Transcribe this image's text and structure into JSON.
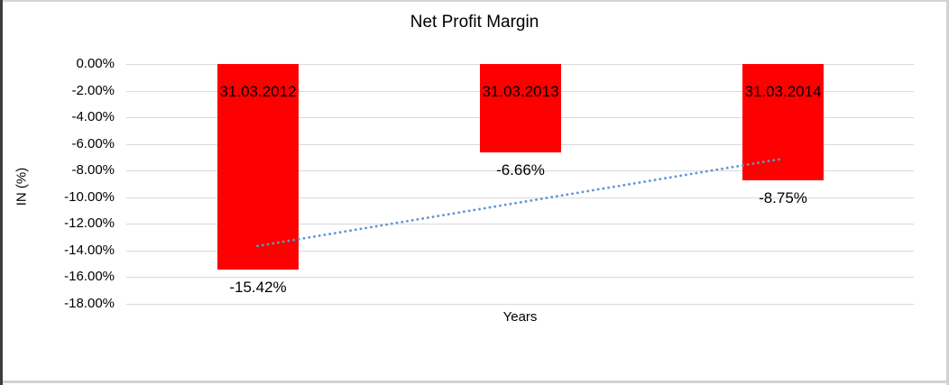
{
  "chart_data": {
    "type": "bar",
    "title": "Net Profit Margin",
    "xlabel": "Years",
    "ylabel": "IN (%)",
    "categories": [
      "31.03.2012",
      "31.03.2013",
      "31.03.2014"
    ],
    "values": [
      -15.42,
      -6.66,
      -8.75
    ],
    "data_labels": [
      "-15.42%",
      "-6.66%",
      "-8.75%"
    ],
    "ylim": [
      -18,
      0
    ],
    "y_ticks": [
      {
        "label": "0.00%",
        "value": 0
      },
      {
        "label": "-2.00%",
        "value": -2
      },
      {
        "label": "-4.00%",
        "value": -4
      },
      {
        "label": "-6.00%",
        "value": -6
      },
      {
        "label": "-8.00%",
        "value": -8
      },
      {
        "label": "-10.00%",
        "value": -10
      },
      {
        "label": "-12.00%",
        "value": -12
      },
      {
        "label": "-14.00%",
        "value": -14
      },
      {
        "label": "-16.00%",
        "value": -16
      },
      {
        "label": "-18.00%",
        "value": -18
      }
    ],
    "grid": true,
    "legend": false,
    "colors": {
      "bar": "#ff0000",
      "gridline": "#d9d9d9",
      "text": "#000000",
      "trendline": "#5e95d0"
    },
    "trendline": {
      "type": "linear",
      "style": "dotted",
      "start_value": -13.66,
      "end_value": -7.11
    }
  }
}
